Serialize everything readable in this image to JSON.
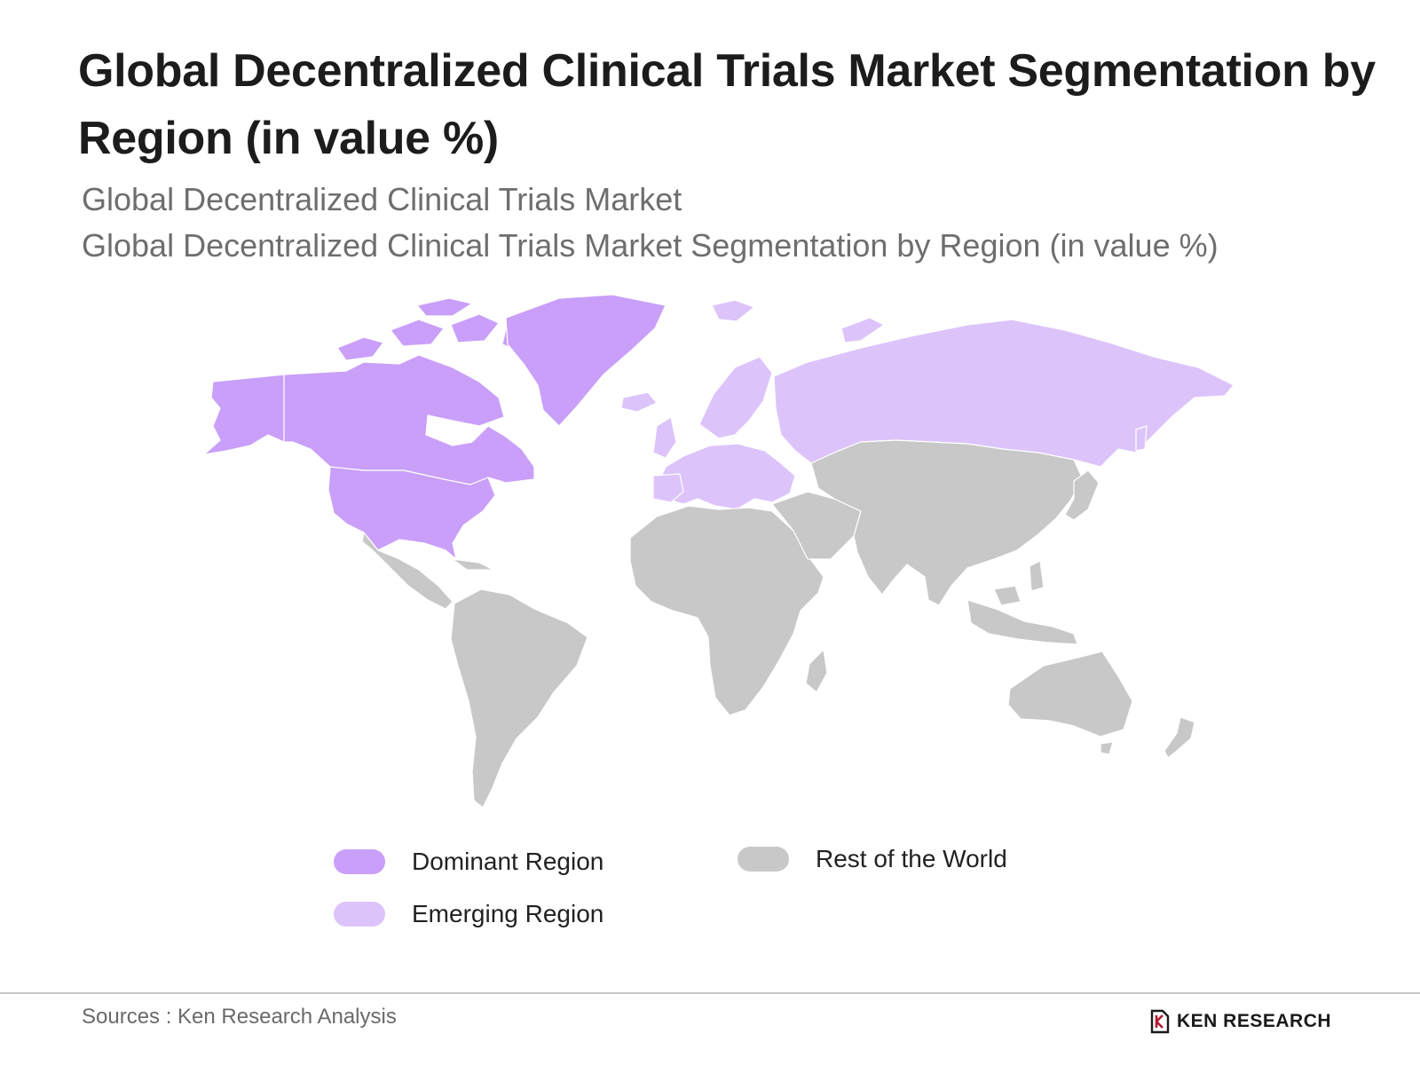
{
  "header": {
    "title": "Global Decentralized Clinical Trials Market Segmentation by Region (in value %)",
    "subtitle_1": "Global Decentralized Clinical Trials Market",
    "subtitle_2": "Global Decentralized Clinical Trials Market Segmentation by Region (in value %)"
  },
  "colors": {
    "dominant": "#c99ff9",
    "emerging": "#dcc4fb",
    "rest": "#c8c8c8",
    "border": "#ffffff"
  },
  "legend": {
    "dominant_label": "Dominant Region",
    "emerging_label": "Emerging Region",
    "rest_label": "Rest of the World"
  },
  "map": {
    "regions": [
      {
        "name": "North America",
        "category": "dominant"
      },
      {
        "name": "Greenland",
        "category": "dominant"
      },
      {
        "name": "Europe",
        "category": "emerging"
      },
      {
        "name": "Russia",
        "category": "emerging"
      },
      {
        "name": "Rest of the World",
        "category": "rest"
      }
    ]
  },
  "footer": {
    "source": "Sources : Ken Research Analysis",
    "brand": "KEN RESEARCH"
  }
}
